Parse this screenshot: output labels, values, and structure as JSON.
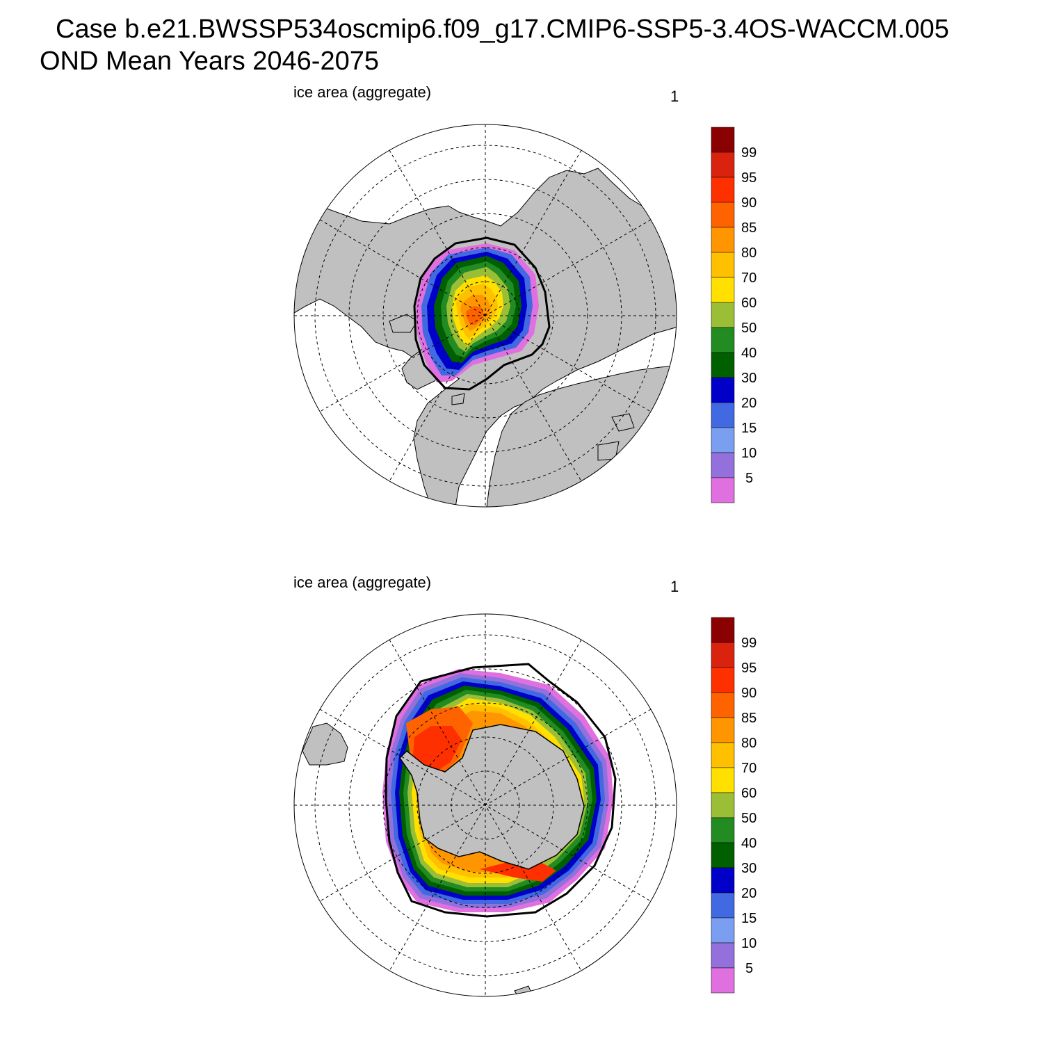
{
  "header": {
    "title_line1": "Case b.e21.BWSSP534oscmip6.f09_g17.CMIP6-SSP5-3.4OS-WACCM.005",
    "title_line2": "OND Mean   Years 2046-2075"
  },
  "panels": [
    {
      "id": "north",
      "title": "ice area  (aggregate)",
      "number": "1"
    },
    {
      "id": "south",
      "title": "ice area  (aggregate)",
      "number": "1"
    }
  ],
  "colorbar": {
    "labels": [
      "99",
      "95",
      "90",
      "85",
      "80",
      "70",
      "60",
      "50",
      "40",
      "30",
      "20",
      "15",
      "10",
      "5"
    ],
    "colors": [
      "#8b0000",
      "#d9230f",
      "#ff3000",
      "#ff6300",
      "#ff9500",
      "#ffc000",
      "#ffe000",
      "#9abf37",
      "#228b22",
      "#006000",
      "#0000c8",
      "#4169e1",
      "#7b9ff0",
      "#9370db",
      "#e070e0"
    ]
  },
  "colors": {
    "land": "#c0c0c0",
    "edge": "#000000"
  }
}
